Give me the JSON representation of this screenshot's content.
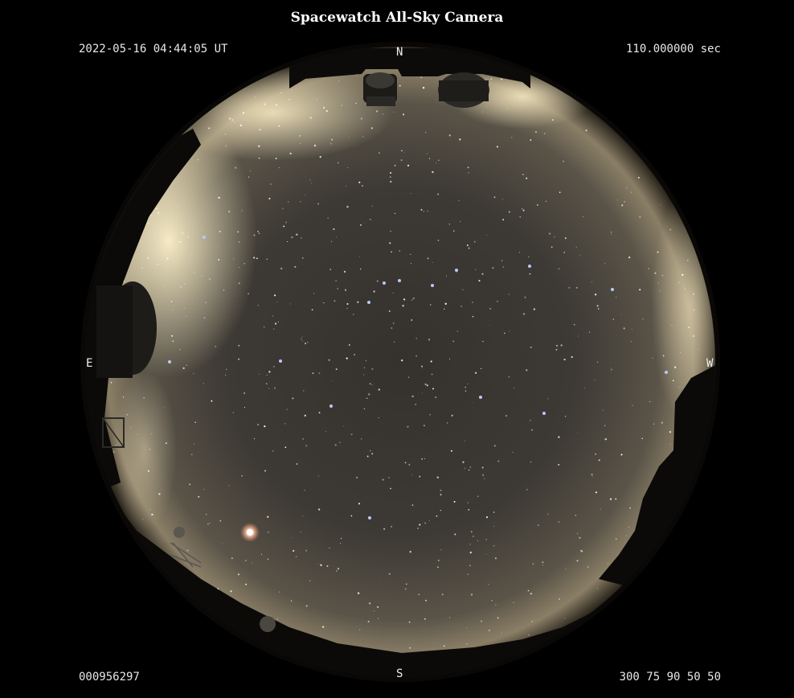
{
  "header": {
    "title": "Spacewatch All-Sky Camera"
  },
  "overlay": {
    "timestamp": "2022-05-16 04:44:05 UT",
    "exposure": "110.000000 sec",
    "frame_id": "000956297",
    "settings": "300 75 90 50 50"
  },
  "compass": {
    "north": "N",
    "south": "S",
    "east": "E",
    "west": "W"
  },
  "colors": {
    "background": "#000000",
    "sky_center": "#3a3630",
    "sky_edge_glow": "#d9c8a0",
    "star": "#ffffff",
    "bright_star_blue": "#b8c8ff",
    "planet": "#ffe0d0"
  }
}
